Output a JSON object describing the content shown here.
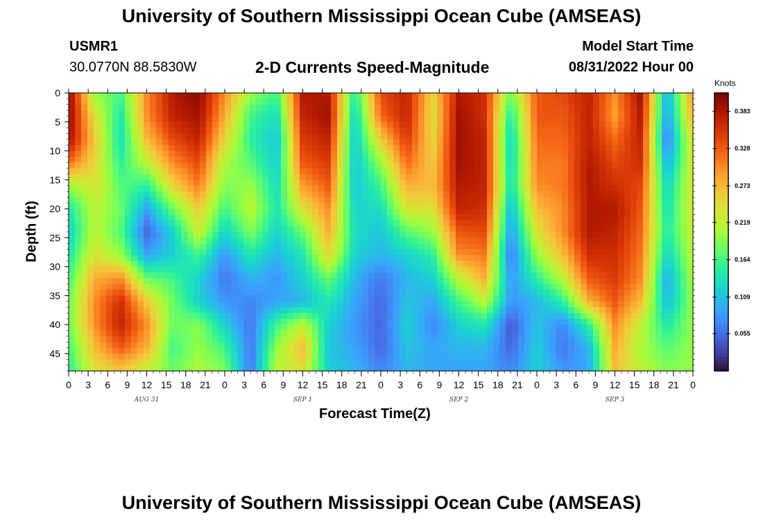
{
  "header": {
    "title": "University of Southern Mississippi Ocean Cube (AMSEAS)",
    "station_id": "USMR1",
    "station_coords": "30.0770N  88.5830W",
    "plot_title": "2-D Currents Speed-Magnitude",
    "model_start_label": "Model Start Time",
    "model_start_value": "08/31/2022 Hour 00"
  },
  "footer": {
    "title": "University of Southern Mississippi Ocean Cube (AMSEAS)"
  },
  "colorscale": [
    "#30123b",
    "#4145ab",
    "#4675ed",
    "#39a2fc",
    "#1bcfd4",
    "#24eca6",
    "#61fc6c",
    "#a4fc3b",
    "#d1e834",
    "#f3c63a",
    "#fe9b2d",
    "#f36315",
    "#d93806",
    "#b11901",
    "#7a0403"
  ],
  "chart_data": {
    "type": "heatmap",
    "title": "2-D Currents Speed-Magnitude",
    "xlabel": "Forecast Time(Z)",
    "ylabel": "Depth (ft)",
    "x_ticks": [
      "0",
      "3",
      "6",
      "9",
      "12",
      "15",
      "18",
      "21",
      "0",
      "3",
      "6",
      "9",
      "12",
      "15",
      "18",
      "21",
      "0",
      "3",
      "6",
      "9",
      "12",
      "15",
      "18",
      "21",
      "0",
      "3",
      "6",
      "9",
      "12",
      "15",
      "18",
      "21",
      "0"
    ],
    "date_labels": [
      {
        "text": "AUG 31",
        "hour": 12
      },
      {
        "text": "SEP 1",
        "hour": 36
      },
      {
        "text": "SEP 2",
        "hour": 60
      },
      {
        "text": "SEP 3",
        "hour": 84
      }
    ],
    "x_range_hours": [
      0,
      96
    ],
    "y_ticks": [
      "0",
      "5",
      "10",
      "15",
      "20",
      "25",
      "30",
      "35",
      "40",
      "45"
    ],
    "y_range_ft": [
      0,
      48
    ],
    "colorbar": {
      "title": "Knots",
      "ticks": [
        "0.383",
        "0.328",
        "0.273",
        "0.219",
        "0.164",
        "0.109",
        "0.055"
      ],
      "range": [
        0,
        0.41
      ]
    },
    "depths_ft": [
      0,
      4,
      8,
      12,
      16,
      20,
      24,
      28,
      32,
      36,
      40,
      44,
      48
    ],
    "hours": [
      0,
      4,
      8,
      12,
      16,
      20,
      24,
      28,
      32,
      36,
      40,
      44,
      48,
      52,
      56,
      60,
      64,
      68,
      72,
      76,
      80,
      84,
      88,
      92,
      96
    ],
    "speed_knots": [
      [
        0.4,
        0.2,
        0.16,
        0.3,
        0.38,
        0.4,
        0.3,
        0.2,
        0.16,
        0.38,
        0.38,
        0.14,
        0.34,
        0.37,
        0.25,
        0.38,
        0.36,
        0.18,
        0.33,
        0.34,
        0.37,
        0.3,
        0.39,
        0.09,
        0.3
      ],
      [
        0.4,
        0.24,
        0.14,
        0.3,
        0.37,
        0.39,
        0.28,
        0.16,
        0.13,
        0.37,
        0.39,
        0.12,
        0.32,
        0.37,
        0.24,
        0.39,
        0.36,
        0.14,
        0.33,
        0.33,
        0.37,
        0.29,
        0.38,
        0.08,
        0.28
      ],
      [
        0.39,
        0.26,
        0.13,
        0.27,
        0.34,
        0.37,
        0.25,
        0.15,
        0.11,
        0.35,
        0.37,
        0.11,
        0.26,
        0.35,
        0.25,
        0.39,
        0.37,
        0.12,
        0.32,
        0.32,
        0.37,
        0.32,
        0.37,
        0.06,
        0.25
      ],
      [
        0.32,
        0.25,
        0.15,
        0.22,
        0.3,
        0.34,
        0.21,
        0.17,
        0.12,
        0.33,
        0.35,
        0.11,
        0.2,
        0.32,
        0.26,
        0.39,
        0.37,
        0.12,
        0.31,
        0.31,
        0.38,
        0.34,
        0.36,
        0.09,
        0.24
      ],
      [
        0.2,
        0.24,
        0.17,
        0.15,
        0.25,
        0.31,
        0.19,
        0.2,
        0.13,
        0.29,
        0.33,
        0.11,
        0.16,
        0.28,
        0.27,
        0.38,
        0.37,
        0.13,
        0.3,
        0.31,
        0.38,
        0.36,
        0.34,
        0.12,
        0.24
      ],
      [
        0.14,
        0.22,
        0.18,
        0.09,
        0.18,
        0.26,
        0.16,
        0.22,
        0.14,
        0.24,
        0.3,
        0.12,
        0.13,
        0.24,
        0.24,
        0.37,
        0.36,
        0.1,
        0.27,
        0.3,
        0.38,
        0.38,
        0.33,
        0.13,
        0.24
      ],
      [
        0.12,
        0.22,
        0.17,
        0.05,
        0.12,
        0.23,
        0.12,
        0.19,
        0.12,
        0.18,
        0.28,
        0.13,
        0.11,
        0.17,
        0.2,
        0.33,
        0.34,
        0.08,
        0.24,
        0.3,
        0.38,
        0.37,
        0.32,
        0.14,
        0.23
      ],
      [
        0.14,
        0.24,
        0.2,
        0.09,
        0.12,
        0.16,
        0.08,
        0.14,
        0.1,
        0.14,
        0.25,
        0.12,
        0.1,
        0.12,
        0.15,
        0.3,
        0.31,
        0.06,
        0.2,
        0.27,
        0.36,
        0.36,
        0.31,
        0.12,
        0.22
      ],
      [
        0.16,
        0.28,
        0.3,
        0.18,
        0.16,
        0.12,
        0.06,
        0.1,
        0.08,
        0.12,
        0.18,
        0.1,
        0.06,
        0.1,
        0.12,
        0.22,
        0.28,
        0.08,
        0.15,
        0.22,
        0.33,
        0.35,
        0.3,
        0.09,
        0.21
      ],
      [
        0.18,
        0.3,
        0.36,
        0.26,
        0.18,
        0.12,
        0.08,
        0.07,
        0.09,
        0.1,
        0.14,
        0.09,
        0.05,
        0.11,
        0.09,
        0.16,
        0.22,
        0.08,
        0.1,
        0.15,
        0.28,
        0.33,
        0.27,
        0.1,
        0.2
      ],
      [
        0.18,
        0.3,
        0.37,
        0.3,
        0.18,
        0.19,
        0.12,
        0.06,
        0.16,
        0.22,
        0.12,
        0.08,
        0.05,
        0.12,
        0.07,
        0.12,
        0.14,
        0.04,
        0.11,
        0.07,
        0.15,
        0.3,
        0.22,
        0.14,
        0.2
      ],
      [
        0.16,
        0.27,
        0.33,
        0.28,
        0.16,
        0.2,
        0.16,
        0.06,
        0.2,
        0.27,
        0.11,
        0.09,
        0.05,
        0.11,
        0.09,
        0.1,
        0.1,
        0.05,
        0.12,
        0.06,
        0.1,
        0.28,
        0.21,
        0.17,
        0.2
      ],
      [
        0.15,
        0.24,
        0.26,
        0.22,
        0.18,
        0.21,
        0.19,
        0.06,
        0.22,
        0.24,
        0.12,
        0.1,
        0.07,
        0.1,
        0.09,
        0.09,
        0.09,
        0.07,
        0.12,
        0.08,
        0.09,
        0.27,
        0.22,
        0.19,
        0.2
      ]
    ]
  }
}
